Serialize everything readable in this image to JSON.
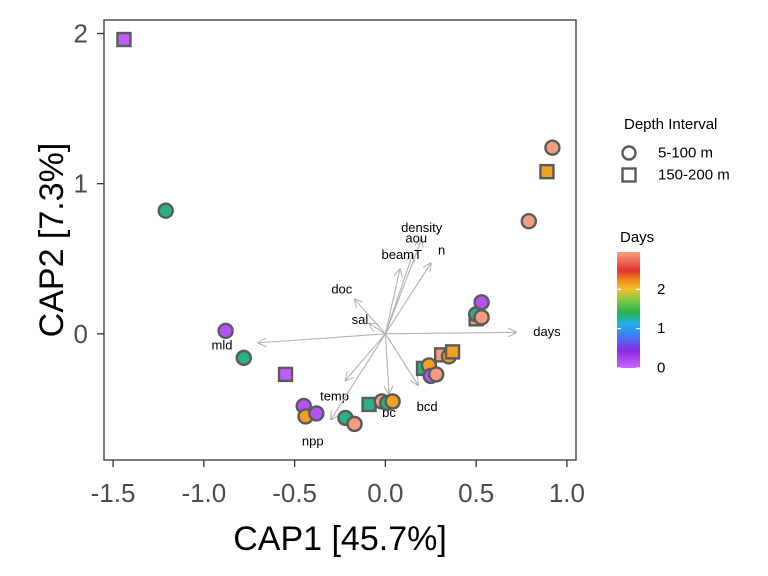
{
  "chart_data": {
    "type": "scatter",
    "xlabel": "CAP1   [45.7%]",
    "ylabel": "CAP2   [7.3%]",
    "xlim": [
      -1.55,
      1.05
    ],
    "ylim": [
      -0.84,
      2.09
    ],
    "xticks": [
      -1.5,
      -1.0,
      -0.5,
      0.0,
      0.5,
      1.0
    ],
    "xtick_labels": [
      "-1.5",
      "-1.0",
      "-0.5",
      "0.0",
      "0.5",
      "1.0"
    ],
    "yticks": [
      0,
      1,
      2
    ],
    "ytick_labels": [
      "0",
      "1",
      "2"
    ],
    "grid": false,
    "legend_shape": {
      "title": "Depth Interval",
      "entries": [
        {
          "label": "5-100 m",
          "shape": "circle"
        },
        {
          "label": "150-200 m",
          "shape": "square"
        }
      ]
    },
    "legend_color": {
      "title": "Days",
      "ticks": [
        0,
        1,
        2
      ],
      "tick_labels": [
        "0",
        "1",
        "2"
      ],
      "range": [
        0,
        2.95
      ]
    },
    "points": [
      {
        "x": -1.44,
        "y": 1.96,
        "shape": "square",
        "days": 0.05
      },
      {
        "x": -1.21,
        "y": 0.82,
        "shape": "circle",
        "days": 1.25
      },
      {
        "x": -0.88,
        "y": 0.02,
        "shape": "circle",
        "days": 0.1
      },
      {
        "x": -0.78,
        "y": -0.16,
        "shape": "circle",
        "days": 1.25
      },
      {
        "x": -0.55,
        "y": -0.27,
        "shape": "square",
        "days": 0.05
      },
      {
        "x": -0.45,
        "y": -0.48,
        "shape": "circle",
        "days": 0.1
      },
      {
        "x": -0.44,
        "y": -0.55,
        "shape": "circle",
        "days": 2.2
      },
      {
        "x": -0.38,
        "y": -0.53,
        "shape": "circle",
        "days": 0.1
      },
      {
        "x": -0.22,
        "y": -0.56,
        "shape": "circle",
        "days": 1.25
      },
      {
        "x": -0.17,
        "y": -0.6,
        "shape": "circle",
        "days": 2.85
      },
      {
        "x": -0.09,
        "y": -0.47,
        "shape": "square",
        "days": 1.25
      },
      {
        "x": -0.02,
        "y": -0.45,
        "shape": "circle",
        "days": 2.85
      },
      {
        "x": 0.01,
        "y": -0.46,
        "shape": "circle",
        "days": 1.25
      },
      {
        "x": 0.04,
        "y": -0.45,
        "shape": "circle",
        "days": 2.2
      },
      {
        "x": 0.21,
        "y": -0.23,
        "shape": "square",
        "days": 1.25
      },
      {
        "x": 0.24,
        "y": -0.21,
        "shape": "circle",
        "days": 2.2
      },
      {
        "x": 0.25,
        "y": -0.28,
        "shape": "circle",
        "days": 0.1
      },
      {
        "x": 0.28,
        "y": -0.27,
        "shape": "circle",
        "days": 2.85
      },
      {
        "x": 0.31,
        "y": -0.14,
        "shape": "square",
        "days": 2.85
      },
      {
        "x": 0.35,
        "y": -0.15,
        "shape": "circle",
        "days": 2.2
      },
      {
        "x": 0.37,
        "y": -0.12,
        "shape": "square",
        "days": 2.2
      },
      {
        "x": 0.5,
        "y": 0.1,
        "shape": "square",
        "days": 2.85
      },
      {
        "x": 0.5,
        "y": 0.13,
        "shape": "circle",
        "days": 1.25
      },
      {
        "x": 0.53,
        "y": 0.11,
        "shape": "circle",
        "days": 2.85
      },
      {
        "x": 0.53,
        "y": 0.21,
        "shape": "circle",
        "days": 0.1
      },
      {
        "x": 0.79,
        "y": 0.75,
        "shape": "circle",
        "days": 2.85
      },
      {
        "x": 0.89,
        "y": 1.08,
        "shape": "square",
        "days": 2.2
      },
      {
        "x": 0.92,
        "y": 1.24,
        "shape": "circle",
        "days": 2.85
      }
    ],
    "vectors": [
      {
        "name": "days",
        "x": 0.72,
        "y": 0.01,
        "lx": 0.89,
        "ly": 0.01
      },
      {
        "name": "mld",
        "x": -0.7,
        "y": -0.06,
        "lx": -0.9,
        "ly": -0.08
      },
      {
        "name": "doc",
        "x": -0.17,
        "y": 0.23,
        "lx": -0.24,
        "ly": 0.29
      },
      {
        "name": "sal",
        "x": -0.09,
        "y": 0.07,
        "lx": -0.14,
        "ly": 0.09
      },
      {
        "name": "density",
        "x": 0.2,
        "y": 0.63,
        "lx": 0.2,
        "ly": 0.7
      },
      {
        "name": "aou",
        "x": 0.15,
        "y": 0.53,
        "lx": 0.17,
        "ly": 0.63
      },
      {
        "name": "n",
        "x": 0.25,
        "y": 0.47,
        "lx": 0.31,
        "ly": 0.55
      },
      {
        "name": "beamT",
        "x": 0.08,
        "y": 0.43,
        "lx": 0.09,
        "ly": 0.52
      },
      {
        "name": "temp",
        "x": -0.22,
        "y": -0.31,
        "lx": -0.28,
        "ly": -0.42
      },
      {
        "name": "npp",
        "x": -0.3,
        "y": -0.57,
        "lx": -0.4,
        "ly": -0.72
      },
      {
        "name": "bc",
        "x": 0.02,
        "y": -0.4,
        "lx": 0.02,
        "ly": -0.53
      },
      {
        "name": "bcd",
        "x": 0.18,
        "y": -0.34,
        "lx": 0.23,
        "ly": -0.49
      }
    ]
  }
}
